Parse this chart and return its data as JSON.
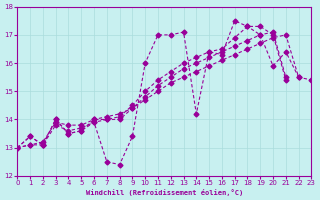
{
  "xlabel": "Windchill (Refroidissement éolien,°C)",
  "ylabel": "",
  "bg_color": "#c8f0f0",
  "line_color": "#990099",
  "grid_color": "#aadddd",
  "xlim": [
    0,
    23
  ],
  "ylim": [
    12,
    18
  ],
  "yticks": [
    12,
    13,
    14,
    15,
    16,
    17,
    18
  ],
  "xticks": [
    0,
    1,
    2,
    3,
    4,
    5,
    6,
    7,
    8,
    9,
    10,
    11,
    12,
    13,
    14,
    15,
    16,
    17,
    18,
    19,
    20,
    21,
    22,
    23
  ],
  "series": [
    [
      13.0,
      13.4,
      13.1,
      14.0,
      13.5,
      13.6,
      13.9,
      12.5,
      12.4,
      13.4,
      16.0,
      17.0,
      17.0,
      17.1,
      14.2,
      16.4,
      16.3,
      17.5,
      17.3,
      17.0,
      15.9,
      16.4,
      15.5,
      null
    ],
    [
      13.0,
      13.4,
      13.1,
      14.0,
      13.5,
      13.6,
      14.0,
      14.0,
      14.0,
      14.4,
      14.8,
      15.2,
      15.5,
      15.8,
      16.0,
      16.2,
      16.4,
      16.6,
      16.8,
      17.0,
      17.1,
      15.5,
      null,
      null
    ],
    [
      13.0,
      13.1,
      13.1,
      13.8,
      13.6,
      13.7,
      13.9,
      14.0,
      14.1,
      14.5,
      15.0,
      15.4,
      15.7,
      16.0,
      16.2,
      16.4,
      16.5,
      16.9,
      17.3,
      17.3,
      17.0,
      15.4,
      null,
      null
    ],
    [
      13.0,
      13.1,
      13.2,
      13.9,
      13.8,
      13.8,
      14.0,
      14.1,
      14.2,
      14.4,
      14.7,
      15.0,
      15.3,
      15.5,
      15.7,
      15.9,
      16.1,
      16.3,
      16.5,
      16.7,
      16.9,
      17.0,
      15.5,
      15.4
    ]
  ]
}
